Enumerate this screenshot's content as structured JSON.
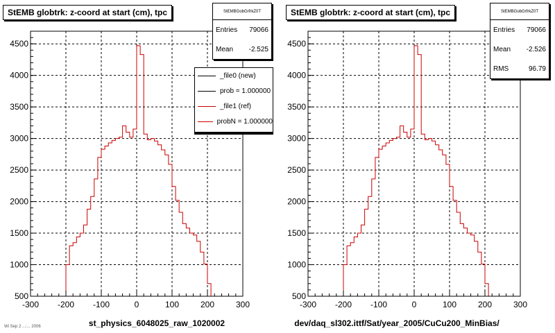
{
  "footer": "Wi Sep 2 ...:... 2006",
  "chart_data": [
    {
      "type": "bar",
      "title": "StEMB globtrk: z-coord at start (cm), tpc",
      "xlabel": "st_physics_6048025_raw_1020002",
      "ylabel": "",
      "xlim": [
        -300,
        300
      ],
      "ylim": [
        500,
        4700
      ],
      "x_ticks": [
        -300,
        -200,
        -100,
        0,
        100,
        200,
        300
      ],
      "y_ticks": [
        500,
        1000,
        1500,
        2000,
        2500,
        3000,
        3500,
        4000,
        4500
      ],
      "grid": true,
      "bin_width": 10,
      "stats": {
        "name": "StEMBGobGrfrkZ0T",
        "entries_label": "Entries",
        "entries": "79066",
        "mean_label": "Mean",
        "mean": "-2.525"
      },
      "legend": {
        "placement": "top-right",
        "entries": [
          {
            "label": "_file0 (new)",
            "color": "#000000"
          },
          {
            "label": "prob = 1.000000",
            "color": "#000000"
          },
          {
            "label": "_file1 (ref)",
            "color": "#cc0000"
          },
          {
            "label": "probN = 1.000000",
            "color": "#cc0000"
          }
        ]
      },
      "series": [
        {
          "name": "_file1 (ref)",
          "color": "#cc0000",
          "x": [
            -200,
            -190,
            -180,
            -170,
            -160,
            -150,
            -140,
            -130,
            -120,
            -110,
            -100,
            -90,
            -80,
            -70,
            -60,
            -50,
            -40,
            -30,
            -20,
            -10,
            0,
            10,
            20,
            30,
            40,
            50,
            60,
            70,
            80,
            90,
            100,
            110,
            120,
            130,
            140,
            150,
            160,
            170,
            180,
            190,
            200
          ],
          "values": [
            1000,
            1300,
            1350,
            1440,
            1500,
            1630,
            1880,
            2080,
            2360,
            2700,
            2830,
            2880,
            2930,
            2970,
            3000,
            3020,
            3200,
            3100,
            3020,
            3150,
            4470,
            4330,
            3070,
            2980,
            3000,
            2960,
            2900,
            2820,
            2740,
            2590,
            2240,
            2020,
            1830,
            1650,
            1580,
            1500,
            1470,
            1370,
            1200,
            1010,
            700
          ]
        }
      ]
    },
    {
      "type": "bar",
      "title": "StEMB globtrk: z-coord at start (cm), tpc",
      "xlabel": "dev/daq_sl302.ittf/Sat/year_2005/CuCu200_MinBias/",
      "ylabel": "",
      "xlim": [
        -300,
        300
      ],
      "ylim": [
        500,
        4700
      ],
      "x_ticks": [
        -300,
        -200,
        -100,
        0,
        100,
        200,
        300
      ],
      "y_ticks": [
        500,
        1000,
        1500,
        2000,
        2500,
        3000,
        3500,
        4000,
        4500
      ],
      "grid": true,
      "bin_width": 10,
      "stats": {
        "name": "StEMBGobGrfrkZ0T",
        "entries_label": "Entries",
        "entries": "79066",
        "mean_label": "Mean",
        "mean": "-2.526",
        "rms_label": "RMS",
        "rms": "96.79"
      },
      "series": [
        {
          "name": "",
          "color": "#cc0000",
          "x": [
            -200,
            -190,
            -180,
            -170,
            -160,
            -150,
            -140,
            -130,
            -120,
            -110,
            -100,
            -90,
            -80,
            -70,
            -60,
            -50,
            -40,
            -30,
            -20,
            -10,
            0,
            10,
            20,
            30,
            40,
            50,
            60,
            70,
            80,
            90,
            100,
            110,
            120,
            130,
            140,
            150,
            160,
            170,
            180,
            190,
            200
          ],
          "values": [
            1000,
            1300,
            1350,
            1440,
            1500,
            1630,
            1880,
            2080,
            2360,
            2700,
            2830,
            2880,
            2930,
            2970,
            3000,
            3020,
            3200,
            3100,
            3020,
            3150,
            4470,
            4330,
            3070,
            2980,
            3000,
            2960,
            2900,
            2820,
            2740,
            2590,
            2240,
            2020,
            1830,
            1650,
            1580,
            1500,
            1470,
            1370,
            1200,
            1010,
            700
          ]
        }
      ]
    }
  ]
}
